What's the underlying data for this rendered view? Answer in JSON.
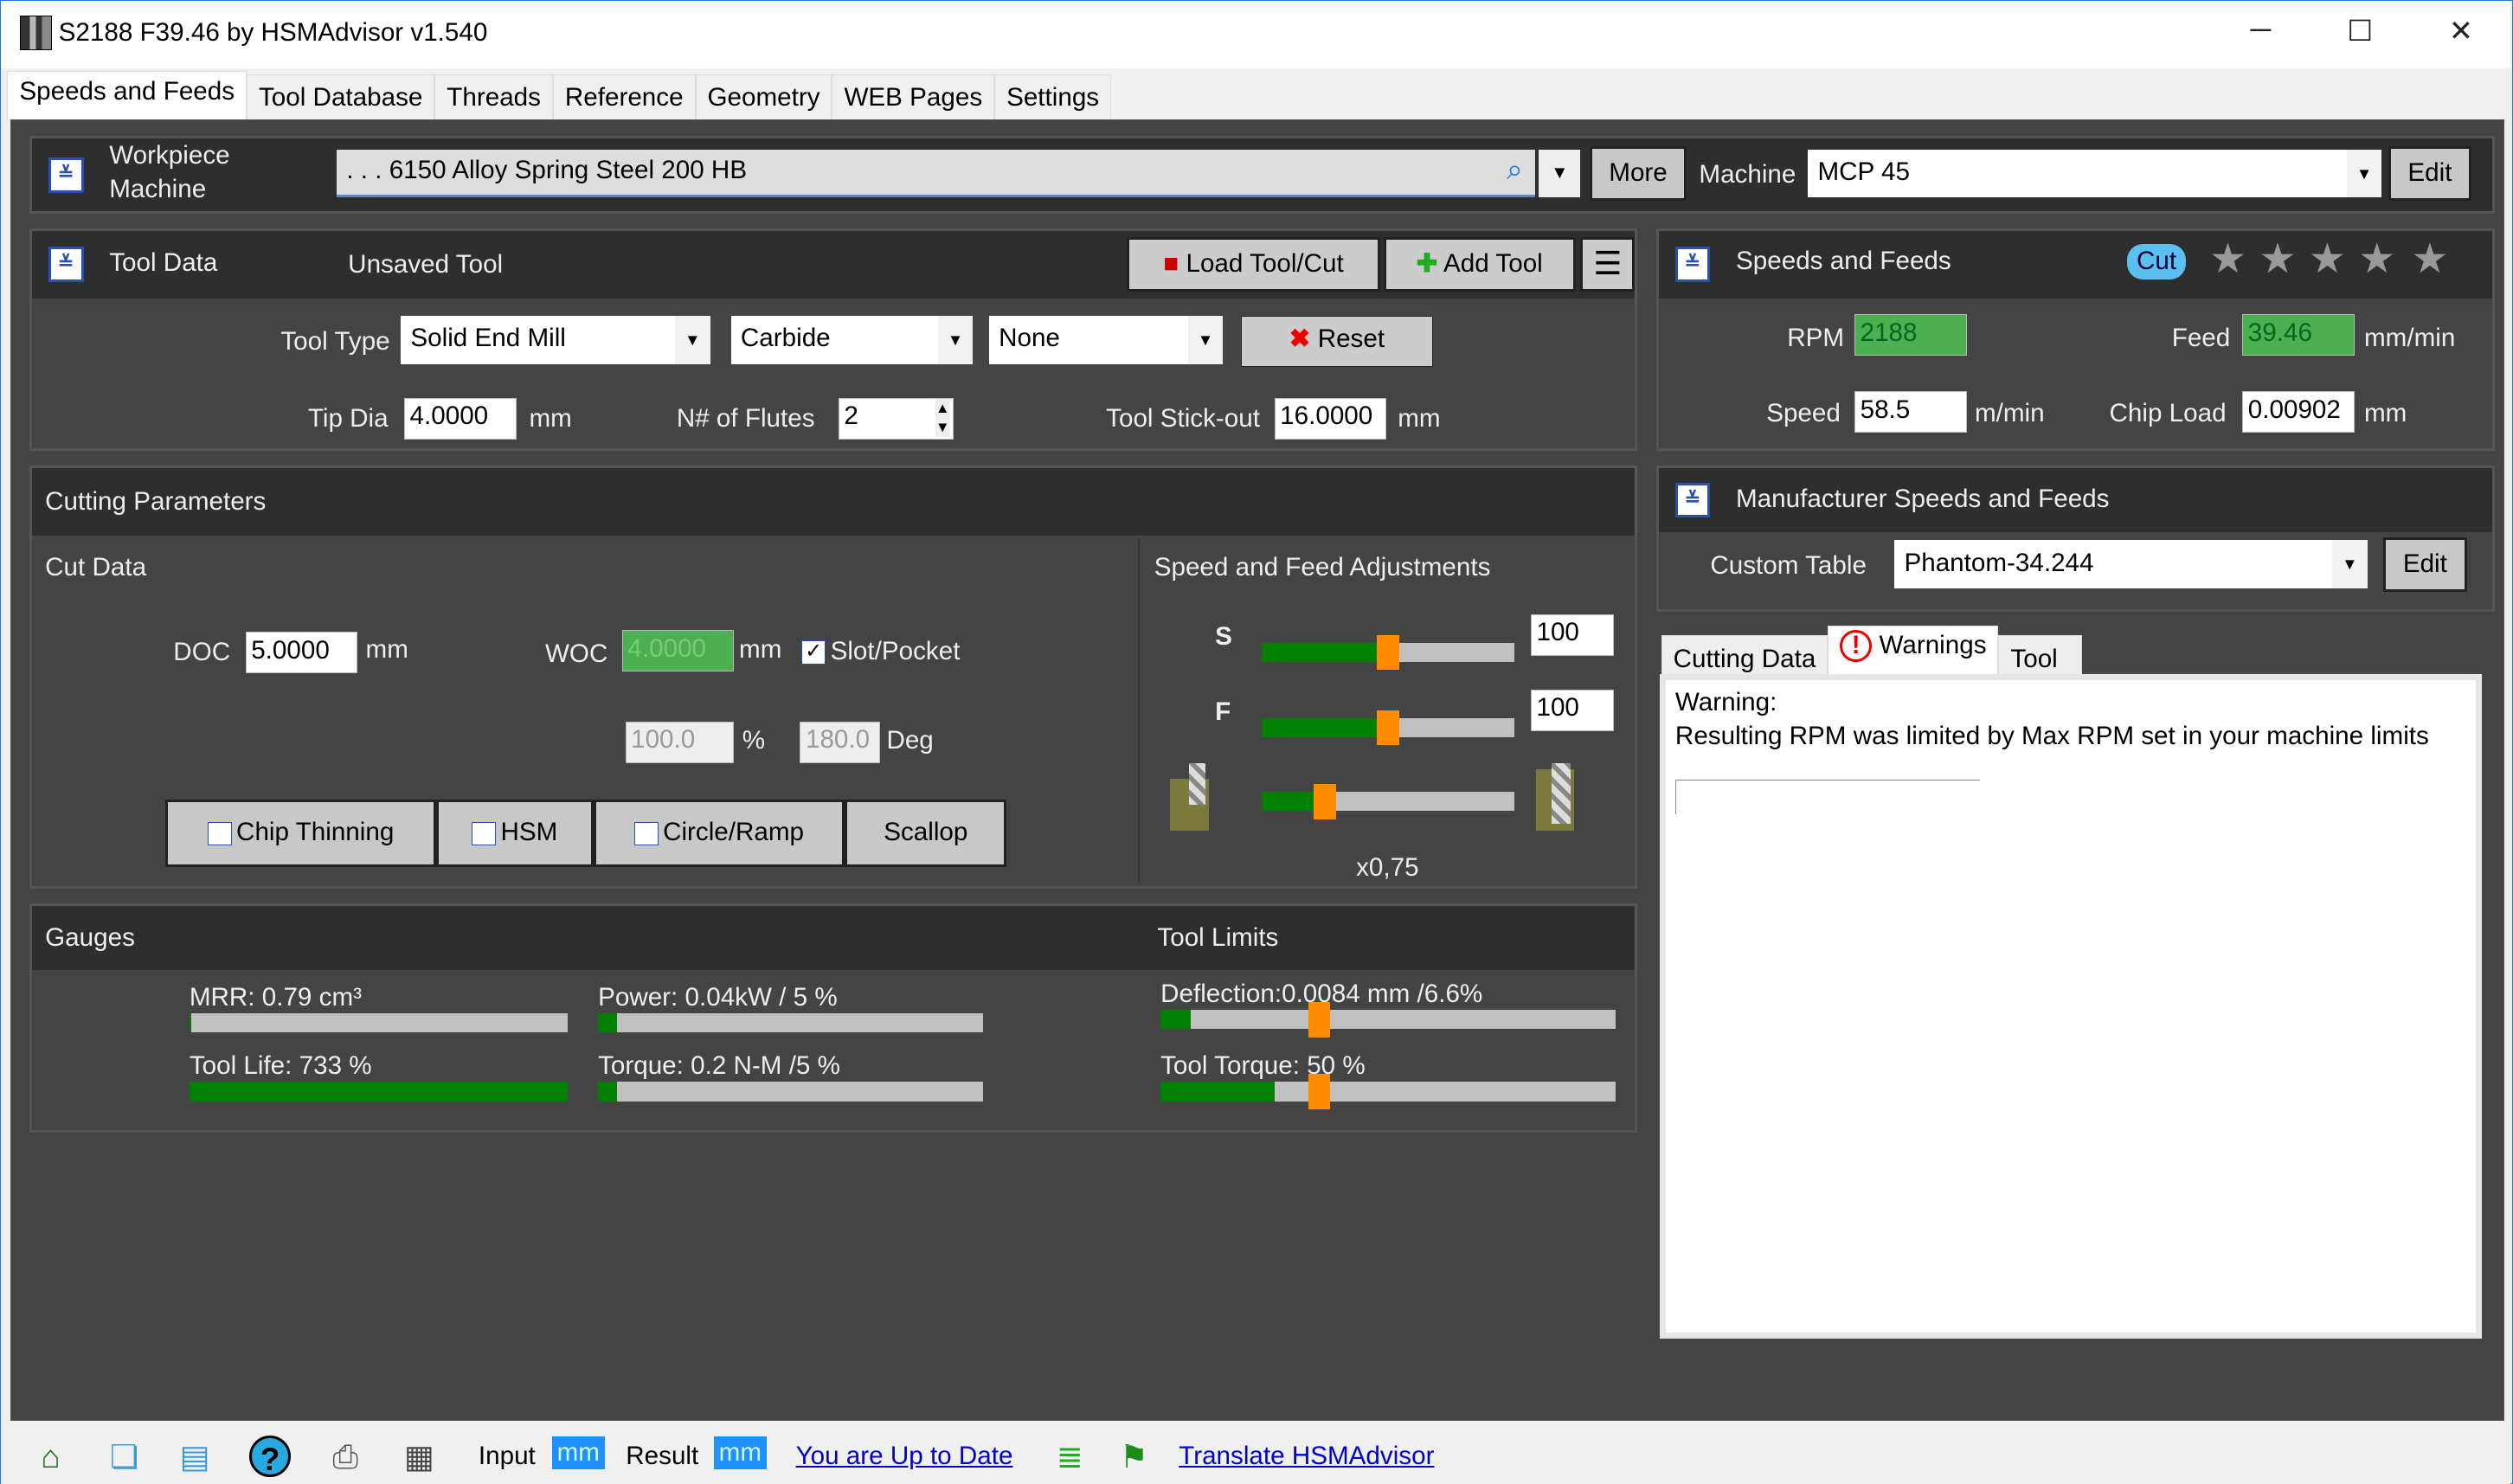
{
  "window": {
    "title": "S2188 F39.46 by HSMAdvisor v1.540",
    "minimize": "─",
    "maximize": "☐",
    "close": "✕"
  },
  "tabs": [
    {
      "label": "Speeds and Feeds",
      "active": true
    },
    {
      "label": "Tool Database"
    },
    {
      "label": "Threads"
    },
    {
      "label": "Reference"
    },
    {
      "label": "Geometry"
    },
    {
      "label": "WEB Pages"
    },
    {
      "label": "Settings"
    }
  ],
  "workpiece": {
    "label1": "Workpiece",
    "label2": "Machine",
    "material": ". . . 6150 Alloy Spring Steel 200 HB",
    "more": "More",
    "machine_label": "Machine",
    "machine": "MCP 45",
    "edit": "Edit"
  },
  "tool_data": {
    "title": "Tool Data",
    "tool_name": "Unsaved Tool",
    "load": "Load Tool/Cut",
    "add": "Add Tool",
    "tool_type_label": "Tool Type",
    "tool_type": "Solid End Mill",
    "material": "Carbide",
    "coating": "None",
    "reset": "Reset",
    "tip_dia_label": "Tip Dia",
    "tip_dia": "4.0000",
    "tip_dia_unit": "mm",
    "flutes_label": "N# of Flutes",
    "flutes": "2",
    "stickout_label": "Tool Stick-out",
    "stickout": "16.0000",
    "stickout_unit": "mm"
  },
  "speeds_feeds": {
    "title": "Speeds and Feeds",
    "cut_badge": "Cut",
    "rating": 0,
    "rpm_label": "RPM",
    "rpm": "2188",
    "feed_label": "Feed",
    "feed": "39.46",
    "feed_unit": "mm/min",
    "speed_label": "Speed",
    "speed": "58.5",
    "speed_unit": "m/min",
    "chipload_label": "Chip Load",
    "chipload": "0.00902",
    "chipload_unit": "mm"
  },
  "cutting": {
    "title": "Cutting Parameters",
    "cut_data": "Cut Data",
    "doc_label": "DOC",
    "doc": "5.0000",
    "doc_unit": "mm",
    "woc_label": "WOC",
    "woc": "4.0000",
    "woc_unit": "mm",
    "slot_label": "Slot/Pocket",
    "slot_checked": true,
    "woc_pct": "100.0",
    "pct_unit": "%",
    "angle": "180.0",
    "angle_unit": "Deg",
    "chip_thinning": "Chip Thinning",
    "hsm": "HSM",
    "circle_ramp": "Circle/Ramp",
    "scallop": "Scallop",
    "adj_title": "Speed and Feed Adjustments",
    "s_label": "S",
    "s_value": "100",
    "s_slider": 50,
    "f_label": "F",
    "f_value": "100",
    "f_slider": 50,
    "engage_slider": 25,
    "engage_label": "x0,75"
  },
  "gauges": {
    "title": "Gauges",
    "limits_title": "Tool Limits",
    "mrr": "MRR: 0.79 cm³",
    "mrr_pct": 0,
    "power": "Power: 0.04kW / 5 %",
    "power_pct": 5,
    "life": "Tool Life: 733 %",
    "life_pct": 100,
    "torque": "Torque: 0.2 N-M /5 %",
    "torque_pct": 5,
    "deflection": "Deflection:0.0084 mm /6.6%",
    "deflection_pct": 6.6,
    "tool_torque": "Tool Torque: 50 %",
    "tool_torque_pct": 50
  },
  "manufacturer": {
    "title": "Manufacturer Speeds and Feeds",
    "table_label": "Custom Table",
    "table": "Phantom-34.244",
    "edit": "Edit"
  },
  "result_tabs": [
    {
      "label": "Cutting Data"
    },
    {
      "label": "Warnings",
      "active": true
    },
    {
      "label": "Tool"
    }
  ],
  "warnings": {
    "heading": "Warning:",
    "text": "Resulting RPM was limited by Max RPM set in your machine limits"
  },
  "statusbar": {
    "input_label": "Input",
    "input_unit": "mm",
    "result_label": "Result",
    "result_unit": "mm",
    "update": "You are Up to Date",
    "translate": "Translate HSMAdvisor"
  },
  "colors": {
    "panel": "#444444",
    "header": "#2e2e2e",
    "ok_green": "#4caf50",
    "slider_thumb": "#ff8c00",
    "link": "#0000cc"
  }
}
